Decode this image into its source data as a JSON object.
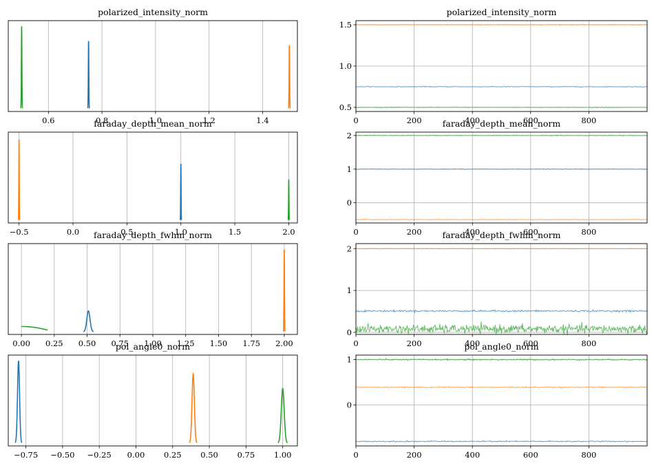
{
  "figure": {
    "series_colors": [
      "#1f77b4",
      "#ff7f0e",
      "#2ca02c"
    ],
    "grid": true,
    "layout": "4 rows x 2 columns: left column density (kde) per parameter, right column trace vs draw"
  },
  "chart_data": [
    {
      "type": "line",
      "title": "polarized_intensity_norm",
      "kind": "density",
      "xlim": [
        0.45,
        1.53
      ],
      "xticks": [
        "0.6",
        "0.8",
        "1.0",
        "1.2",
        "1.4"
      ],
      "yticks": [],
      "series": [
        {
          "color": "#2ca02c",
          "center": 0.5,
          "spread": 0.001,
          "peak": 0.95
        },
        {
          "color": "#1f77b4",
          "center": 0.75,
          "spread": 0.001,
          "peak": 0.78
        },
        {
          "color": "#ff7f0e",
          "center": 1.5,
          "spread": 0.001,
          "peak": 0.73
        }
      ]
    },
    {
      "type": "line",
      "title": "polarized_intensity_norm",
      "kind": "trace",
      "xlim": [
        0,
        1000
      ],
      "ylim": [
        0.45,
        1.55
      ],
      "xticks": [
        "0",
        "200",
        "400",
        "600",
        "800"
      ],
      "yticks": [
        "0.5",
        "1.0",
        "1.5"
      ],
      "series": [
        {
          "color": "#ff7f0e",
          "level": 1.5,
          "noise": 0.002
        },
        {
          "color": "#1f77b4",
          "level": 0.75,
          "noise": 0.002
        },
        {
          "color": "#2ca02c",
          "level": 0.5,
          "noise": 0.002
        }
      ]
    },
    {
      "type": "line",
      "title": "faraday_depth_mean_norm",
      "kind": "density",
      "xlim": [
        -0.6,
        2.08
      ],
      "xticks": [
        "−0.5",
        "0.0",
        "0.5",
        "1.0",
        "1.5",
        "2.0"
      ],
      "yticks": [],
      "series": [
        {
          "color": "#ff7f0e",
          "center": -0.5,
          "spread": 0.002,
          "peak": 0.93
        },
        {
          "color": "#1f77b4",
          "center": 1.0,
          "spread": 0.002,
          "peak": 0.65
        },
        {
          "color": "#2ca02c",
          "center": 2.0,
          "spread": 0.002,
          "peak": 0.47
        }
      ]
    },
    {
      "type": "line",
      "title": "faraday_depth_mean_norm",
      "kind": "trace",
      "xlim": [
        0,
        1000
      ],
      "ylim": [
        -0.6,
        2.1
      ],
      "xticks": [
        "0",
        "200",
        "400",
        "600",
        "800"
      ],
      "yticks": [
        "0",
        "1",
        "2"
      ],
      "series": [
        {
          "color": "#2ca02c",
          "level": 2.0,
          "noise": 0.006
        },
        {
          "color": "#1f77b4",
          "level": 1.0,
          "noise": 0.004
        },
        {
          "color": "#ff7f0e",
          "level": -0.5,
          "noise": 0.004
        }
      ]
    },
    {
      "type": "line",
      "title": "faraday_depth_fwhm_norm",
      "kind": "density",
      "xlim": [
        -0.1,
        2.1
      ],
      "xticks": [
        "0.00",
        "0.25",
        "0.50",
        "0.75",
        "1.00",
        "1.25",
        "1.50",
        "1.75",
        "2.00"
      ],
      "yticks": [],
      "series": [
        {
          "color": "#2ca02c",
          "center": 0.0,
          "spread": 0.2,
          "peak": 0.06,
          "shape": "flat"
        },
        {
          "color": "#1f77b4",
          "center": 0.51,
          "spread": 0.012,
          "peak": 0.24
        },
        {
          "color": "#ff7f0e",
          "center": 2.0,
          "spread": 0.002,
          "peak": 0.95
        }
      ]
    },
    {
      "type": "line",
      "title": "faraday_depth_fwhm_norm",
      "kind": "trace",
      "xlim": [
        0,
        1000
      ],
      "ylim": [
        -0.05,
        2.12
      ],
      "xticks": [
        "0",
        "200",
        "400",
        "600",
        "800"
      ],
      "yticks": [
        "0",
        "1",
        "2"
      ],
      "series": [
        {
          "color": "#ff7f0e",
          "level": 2.0,
          "noise": 0.004
        },
        {
          "color": "#1f77b4",
          "level": 0.51,
          "noise": 0.01
        },
        {
          "color": "#2ca02c",
          "level": 0.08,
          "noise": 0.05
        }
      ]
    },
    {
      "type": "line",
      "title": "pol_angle0_norm",
      "kind": "density",
      "xlim": [
        -0.87,
        1.1
      ],
      "xticks": [
        "−0.75",
        "−0.50",
        "−0.25",
        "0.00",
        "0.25",
        "0.50",
        "0.75",
        "1.00"
      ],
      "yticks": [],
      "series": [
        {
          "color": "#1f77b4",
          "center": -0.8,
          "spread": 0.007,
          "peak": 0.95
        },
        {
          "color": "#ff7f0e",
          "center": 0.39,
          "spread": 0.008,
          "peak": 0.8
        },
        {
          "color": "#2ca02c",
          "center": 1.0,
          "spread": 0.01,
          "peak": 0.63
        }
      ]
    },
    {
      "type": "line",
      "title": "pol_angle0_norm",
      "kind": "trace",
      "xlim": [
        0,
        1000
      ],
      "ylim": [
        -0.9,
        1.1
      ],
      "xticks": [
        "0",
        "200",
        "400",
        "600",
        "800"
      ],
      "yticks": [
        "0",
        "1"
      ],
      "series": [
        {
          "color": "#2ca02c",
          "level": 1.0,
          "noise": 0.008
        },
        {
          "color": "#ff7f0e",
          "level": 0.39,
          "noise": 0.006
        },
        {
          "color": "#1f77b4",
          "level": -0.8,
          "noise": 0.006
        }
      ]
    }
  ]
}
